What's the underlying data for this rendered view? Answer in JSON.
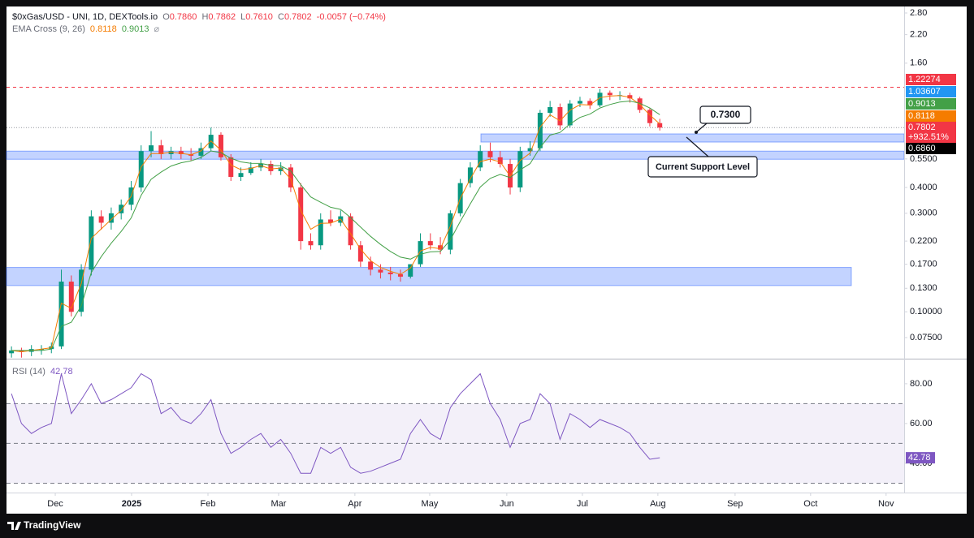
{
  "header": {
    "symbol": "$0xGas/USD - UNI, 1D, DEXTools.io",
    "ohlc": [
      {
        "key": "O",
        "value": "0.7860"
      },
      {
        "key": "H",
        "value": "0.7862"
      },
      {
        "key": "L",
        "value": "0.7610"
      },
      {
        "key": "C",
        "value": "0.7802"
      }
    ],
    "change": "-0.0057 (−0.74%)",
    "indicator": "EMA Cross (9, 26)",
    "indicator_icon": "⌀"
  },
  "footer": {
    "brand": "TradingView"
  },
  "chart_data": [
    {
      "type": "candlestick",
      "up_color": "#089981",
      "down_color": "#f23645",
      "xlim": [
        0,
        90
      ],
      "xticks": [
        {
          "value": 4.89,
          "label": "Dec"
        },
        {
          "value": 12.54,
          "label": "2025",
          "bold": true
        },
        {
          "value": 20.2,
          "label": "Feb"
        },
        {
          "value": 27.28,
          "label": "Mar"
        },
        {
          "value": 34.93,
          "label": "Apr"
        },
        {
          "value": 42.43,
          "label": "May"
        },
        {
          "value": 50.16,
          "label": "Jun"
        },
        {
          "value": 57.74,
          "label": "Jul"
        },
        {
          "value": 65.31,
          "label": "Aug"
        },
        {
          "value": 73.05,
          "label": "Sep"
        },
        {
          "value": 80.62,
          "label": "Oct"
        },
        {
          "value": 88.19,
          "label": "Nov"
        }
      ],
      "ylim": [
        0.0593,
        3.01
      ],
      "log_scale": true,
      "yticks": [
        {
          "value": 2.8,
          "label": "2.80"
        },
        {
          "value": 2.2,
          "label": "2.20"
        },
        {
          "value": 1.6,
          "label": "1.60"
        },
        {
          "value": 0.55,
          "label": "0.5500"
        },
        {
          "value": 0.4,
          "label": "0.4000"
        },
        {
          "value": 0.3,
          "label": "0.3000"
        },
        {
          "value": 0.22,
          "label": "0.2200"
        },
        {
          "value": 0.17,
          "label": "0.1700"
        },
        {
          "value": 0.13,
          "label": "0.1300"
        },
        {
          "value": 0.1,
          "label": "0.10000"
        },
        {
          "value": 0.075,
          "label": "0.07500"
        }
      ],
      "open": [
        0.063,
        0.065,
        0.064,
        0.066,
        0.066,
        0.068,
        0.14,
        0.1,
        0.16,
        0.29,
        0.27,
        0.3,
        0.33,
        0.4,
        0.6,
        0.64,
        0.58,
        0.6,
        0.58,
        0.57,
        0.62,
        0.72,
        0.56,
        0.45,
        0.47,
        0.5,
        0.52,
        0.48,
        0.5,
        0.4,
        0.22,
        0.21,
        0.28,
        0.27,
        0.29,
        0.21,
        0.175,
        0.16,
        0.155,
        0.152,
        0.148,
        0.17,
        0.22,
        0.21,
        0.2,
        0.3,
        0.42,
        0.5,
        0.6,
        0.56,
        0.52,
        0.4,
        0.6,
        0.62,
        0.92,
        0.98,
        0.8,
        1.02,
        1.05,
        1.0,
        1.15,
        1.12,
        1.12,
        1.08,
        0.95,
        0.82
      ],
      "high": [
        0.068,
        0.067,
        0.069,
        0.069,
        0.071,
        0.16,
        0.15,
        0.17,
        0.31,
        0.31,
        0.32,
        0.35,
        0.43,
        0.64,
        0.75,
        0.68,
        0.63,
        0.63,
        0.62,
        0.66,
        0.78,
        0.74,
        0.58,
        0.5,
        0.53,
        0.55,
        0.54,
        0.53,
        0.52,
        0.42,
        0.24,
        0.3,
        0.31,
        0.31,
        0.3,
        0.22,
        0.185,
        0.17,
        0.165,
        0.16,
        0.158,
        0.24,
        0.24,
        0.23,
        0.31,
        0.44,
        0.53,
        0.64,
        0.66,
        0.6,
        0.55,
        0.63,
        0.67,
        0.95,
        1.05,
        1.02,
        1.06,
        1.1,
        1.08,
        1.2,
        1.18,
        1.17,
        1.15,
        1.1,
        0.97,
        0.86
      ],
      "low": [
        0.06,
        0.06,
        0.061,
        0.062,
        0.063,
        0.066,
        0.095,
        0.095,
        0.15,
        0.25,
        0.25,
        0.28,
        0.31,
        0.38,
        0.56,
        0.55,
        0.55,
        0.55,
        0.54,
        0.55,
        0.6,
        0.54,
        0.43,
        0.43,
        0.46,
        0.48,
        0.46,
        0.46,
        0.38,
        0.2,
        0.2,
        0.2,
        0.26,
        0.26,
        0.2,
        0.165,
        0.15,
        0.145,
        0.142,
        0.14,
        0.145,
        0.165,
        0.2,
        0.19,
        0.19,
        0.29,
        0.4,
        0.48,
        0.53,
        0.5,
        0.37,
        0.38,
        0.57,
        0.6,
        0.88,
        0.76,
        0.78,
        0.98,
        0.96,
        0.98,
        1.06,
        1.06,
        1.03,
        0.92,
        0.79,
        0.755
      ],
      "close": [
        0.065,
        0.064,
        0.066,
        0.066,
        0.068,
        0.14,
        0.1,
        0.16,
        0.29,
        0.27,
        0.3,
        0.33,
        0.4,
        0.6,
        0.64,
        0.58,
        0.6,
        0.58,
        0.57,
        0.62,
        0.72,
        0.56,
        0.45,
        0.47,
        0.5,
        0.52,
        0.48,
        0.5,
        0.4,
        0.22,
        0.21,
        0.28,
        0.27,
        0.29,
        0.21,
        0.175,
        0.16,
        0.155,
        0.152,
        0.148,
        0.17,
        0.22,
        0.21,
        0.2,
        0.3,
        0.42,
        0.5,
        0.6,
        0.56,
        0.52,
        0.4,
        0.6,
        0.62,
        0.92,
        0.98,
        0.8,
        1.02,
        1.05,
        1.0,
        1.15,
        1.12,
        1.12,
        1.08,
        0.95,
        0.82,
        0.7802
      ],
      "lines": [
        {
          "color": "#f57c00",
          "values": [
            0.065,
            0.064,
            0.065,
            0.066,
            0.067,
            0.11,
            0.104,
            0.137,
            0.227,
            0.252,
            0.28,
            0.31,
            0.363,
            0.503,
            0.584,
            0.584,
            0.593,
            0.585,
            0.576,
            0.602,
            0.672,
            0.606,
            0.514,
            0.488,
            0.495,
            0.51,
            0.492,
            0.497,
            0.44,
            0.31,
            0.251,
            0.268,
            0.269,
            0.281,
            0.239,
            0.201,
            0.177,
            0.164,
            0.157,
            0.152,
            0.163,
            0.197,
            0.205,
            0.202,
            0.26,
            0.354,
            0.44,
            0.534,
            0.549,
            0.532,
            0.454,
            0.54,
            0.587,
            0.784,
            0.9,
            0.841,
            0.947,
            1.008,
            1.003,
            1.09,
            1.108,
            1.116,
            1.095,
            1.009,
            0.897,
            0.8118
          ]
        },
        {
          "color": "#43a047",
          "values": [
            0.065,
            0.065,
            0.065,
            0.065,
            0.066,
            0.085,
            0.089,
            0.107,
            0.155,
            0.185,
            0.215,
            0.245,
            0.285,
            0.367,
            0.438,
            0.475,
            0.508,
            0.527,
            0.538,
            0.559,
            0.601,
            0.59,
            0.554,
            0.532,
            0.524,
            0.523,
            0.512,
            0.509,
            0.481,
            0.413,
            0.36,
            0.339,
            0.321,
            0.313,
            0.286,
            0.257,
            0.232,
            0.212,
            0.196,
            0.184,
            0.18,
            0.19,
            0.195,
            0.196,
            0.223,
            0.274,
            0.333,
            0.402,
            0.443,
            0.463,
            0.447,
            0.487,
            0.522,
            0.625,
            0.717,
            0.739,
            0.812,
            0.874,
            0.907,
            0.97,
            1.009,
            1.038,
            1.049,
            1.023,
            0.97,
            0.9013
          ]
        }
      ],
      "zones": [
        {
          "low": 0.664,
          "high": 0.727
        },
        {
          "low": 0.548,
          "high": 0.6
        },
        {
          "low": 0.134,
          "high": 0.164
        }
      ],
      "levels": [
        {
          "value": 1.22274,
          "color": "#f23645"
        }
      ],
      "price_labels": [
        {
          "label": "1.22274",
          "color": "#f23645"
        },
        {
          "label": "1.03607",
          "color": "#2196f3"
        },
        {
          "label": "0.9013",
          "color": "#43a047"
        },
        {
          "label": "0.8118",
          "color": "#f57c00"
        },
        {
          "label": "0.7802",
          "sublabel": "+932.51%",
          "color": "#f23645"
        },
        {
          "label": "0.6860",
          "color": "#000000"
        }
      ],
      "annotations": [
        {
          "text": "0.7300"
        },
        {
          "text": "Current Support Level"
        }
      ]
    },
    {
      "type": "line",
      "title": "RSI (14)",
      "color": "#7e57c2",
      "ylim": [
        26.1,
        92.2
      ],
      "yticks": [
        {
          "value": 40,
          "label": "40.00"
        },
        {
          "value": 60,
          "label": "60.00"
        },
        {
          "value": 80,
          "label": "80.00"
        }
      ],
      "band": [
        30,
        70
      ],
      "levels": [
        30,
        50,
        70
      ],
      "values": [
        75,
        60,
        55,
        58,
        60,
        85,
        65,
        72,
        80,
        70,
        72,
        75,
        78,
        85,
        82,
        65,
        68,
        62,
        60,
        65,
        72,
        55,
        45,
        48,
        52,
        55,
        48,
        52,
        45,
        35,
        35,
        48,
        45,
        48,
        38,
        35,
        36,
        38,
        40,
        42,
        55,
        62,
        55,
        52,
        68,
        75,
        80,
        85,
        70,
        62,
        48,
        60,
        62,
        75,
        70,
        52,
        65,
        62,
        58,
        62,
        60,
        58,
        55,
        48,
        42,
        42.78
      ]
    }
  ]
}
